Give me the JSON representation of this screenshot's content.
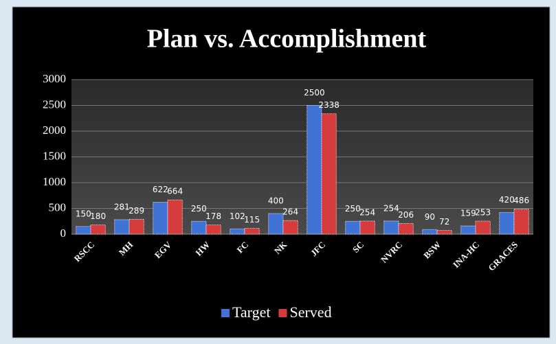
{
  "chart_data": {
    "type": "bar",
    "title": "Plan vs. Accomplishment",
    "categories": [
      "RSCC",
      "MH",
      "EGV",
      "HW",
      "FC",
      "NK",
      "JFC",
      "SC",
      "NVRC",
      "BSW",
      "INA-HC",
      "GRACES"
    ],
    "series": [
      {
        "name": "Target",
        "color": "#3f74d6",
        "values": [
          150,
          281,
          622,
          250,
          102,
          400,
          2500,
          250,
          254,
          90,
          159,
          420
        ]
      },
      {
        "name": "Served",
        "color": "#d63c3c",
        "values": [
          180,
          289,
          664,
          178,
          115,
          264,
          2338,
          254,
          206,
          72,
          253,
          486
        ]
      }
    ],
    "ylim": [
      0,
      3000
    ],
    "yticks": [
      0,
      500,
      1000,
      1500,
      2000,
      2500,
      3000
    ],
    "grid": true,
    "legend": "bottom"
  }
}
